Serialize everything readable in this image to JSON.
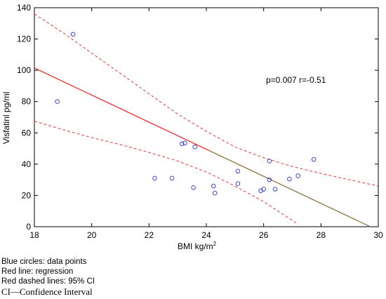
{
  "chart_data": {
    "type": "scatter",
    "title": "",
    "xlabel": "BMI kg/m",
    "xlabel_sup": "2",
    "ylabel": "Visfatinl pg/ml",
    "xlim": [
      18,
      30
    ],
    "ylim": [
      0,
      140
    ],
    "xticks": [
      18,
      20,
      22,
      24,
      26,
      28,
      30
    ],
    "yticks": [
      0,
      20,
      40,
      60,
      80,
      100,
      120,
      140
    ],
    "grid": false,
    "annotation": "p=0.007 r=-0.51",
    "series": [
      {
        "points": [
          [
            18.8,
            80
          ],
          [
            19.35,
            123
          ],
          [
            22.2,
            31
          ],
          [
            22.8,
            31
          ],
          [
            23.15,
            53
          ],
          [
            23.25,
            53.5
          ],
          [
            23.55,
            25
          ],
          [
            23.6,
            51
          ],
          [
            24.25,
            26
          ],
          [
            24.3,
            21.5
          ],
          [
            25.1,
            35.5
          ],
          [
            25.1,
            27.5
          ],
          [
            25.9,
            23
          ],
          [
            26.0,
            24
          ],
          [
            26.2,
            42
          ],
          [
            26.2,
            30
          ],
          [
            26.4,
            24
          ],
          [
            26.9,
            30.5
          ],
          [
            27.2,
            32.5
          ],
          [
            27.75,
            43
          ]
        ],
        "color": "#3c46d2"
      }
    ],
    "regression": {
      "intercept": 101.5,
      "slope": -8.66,
      "color": "#ee2222",
      "lower_color": "#8b6a3a"
    },
    "ci_upper": [
      [
        18,
        136
      ],
      [
        19,
        124
      ],
      [
        20,
        111
      ],
      [
        21,
        98
      ],
      [
        22,
        85
      ],
      [
        23,
        72
      ],
      [
        24,
        61
      ],
      [
        25,
        51
      ],
      [
        26,
        44
      ],
      [
        27,
        38.5
      ],
      [
        28,
        34
      ],
      [
        29,
        30
      ],
      [
        30,
        26
      ]
    ],
    "ci_lower": [
      [
        18,
        67.5
      ],
      [
        19,
        62
      ],
      [
        20,
        57
      ],
      [
        21,
        52.5
      ],
      [
        22,
        47.5
      ],
      [
        23,
        42
      ],
      [
        24,
        35
      ],
      [
        25,
        26
      ],
      [
        26,
        16
      ],
      [
        27,
        4
      ],
      [
        27.2,
        1.5
      ]
    ]
  },
  "legend": {
    "line1": "Blue circles: data points",
    "line2": "Red line: regression",
    "line3": "Red dashed lines: 95% CI",
    "line4": "CI—Confidence Interval"
  }
}
